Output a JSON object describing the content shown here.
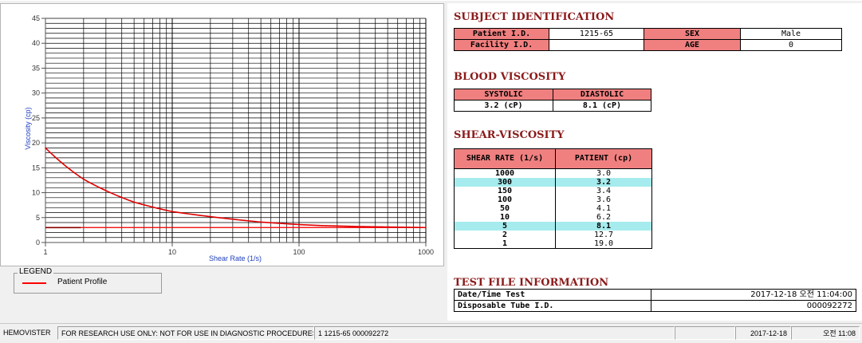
{
  "chart_data": {
    "type": "line",
    "title": "",
    "xlabel": "Shear Rate (1/s)",
    "ylabel": "Viscosity (cp)",
    "xscale": "log",
    "xlim": [
      1,
      1000
    ],
    "ylim": [
      0,
      45
    ],
    "grid": true,
    "x_ticks": [
      "1",
      "10",
      "100",
      "1000"
    ],
    "y_ticks": [
      "0",
      "5",
      "10",
      "15",
      "20",
      "25",
      "30",
      "35",
      "40",
      "45"
    ],
    "series": [
      {
        "name": "Patient Profile",
        "color": "#e00000",
        "x": [
          1,
          2,
          5,
          10,
          50,
          100,
          150,
          300,
          1000
        ],
        "y": [
          19.0,
          12.7,
          8.1,
          6.2,
          4.1,
          3.6,
          3.4,
          3.2,
          3.0
        ]
      }
    ],
    "reference_lines": [
      {
        "y": 3.0,
        "color": "#ff0000"
      }
    ],
    "legend": {
      "title": "LEGEND",
      "placement": "bottom-left"
    }
  },
  "subject": {
    "title": "SUBJECT IDENTIFICATION",
    "patient_id_label": "Patient I.D.",
    "patient_id_value": "1215-65",
    "sex_label": "SEX",
    "sex_value": "Male",
    "facility_label": "Facility I.D.",
    "facility_value": "",
    "age_label": "AGE",
    "age_value": "0"
  },
  "blood_viscosity": {
    "title": "BLOOD VISCOSITY",
    "systolic_label": "SYSTOLIC",
    "diastolic_label": "DIASTOLIC",
    "systolic_value": "3.2 (cP)",
    "diastolic_value": "8.1 (cP)"
  },
  "shear_viscosity": {
    "title": "SHEAR-VISCOSITY",
    "col_rate": "SHEAR RATE (1/s)",
    "col_patient": "PATIENT (cp)",
    "rows": [
      {
        "rate": "1000",
        "value": "3.0",
        "highlight": false
      },
      {
        "rate": "300",
        "value": "3.2",
        "highlight": true
      },
      {
        "rate": "150",
        "value": "3.4",
        "highlight": false
      },
      {
        "rate": "100",
        "value": "3.6",
        "highlight": false
      },
      {
        "rate": "50",
        "value": "4.1",
        "highlight": false
      },
      {
        "rate": "10",
        "value": "6.2",
        "highlight": false
      },
      {
        "rate": "5",
        "value": "8.1",
        "highlight": true
      },
      {
        "rate": "2",
        "value": "12.7",
        "highlight": false
      },
      {
        "rate": "1",
        "value": "19.0",
        "highlight": false
      }
    ]
  },
  "test_file": {
    "title": "TEST FILE INFORMATION",
    "datetime_label": "Date/Time Test",
    "datetime_value": "2017-12-18  오전 11:04:00",
    "tube_label": "Disposable Tube I.D.",
    "tube_value": "000092272"
  },
  "statusbar": {
    "app": "HEMOVISTER",
    "notice": "FOR RESEARCH USE ONLY: NOT FOR USE IN DIAGNOSTIC PROCEDURES",
    "record": "1  1215-65  000092272",
    "date": "2017-12-18",
    "time": "오전 11:08"
  }
}
